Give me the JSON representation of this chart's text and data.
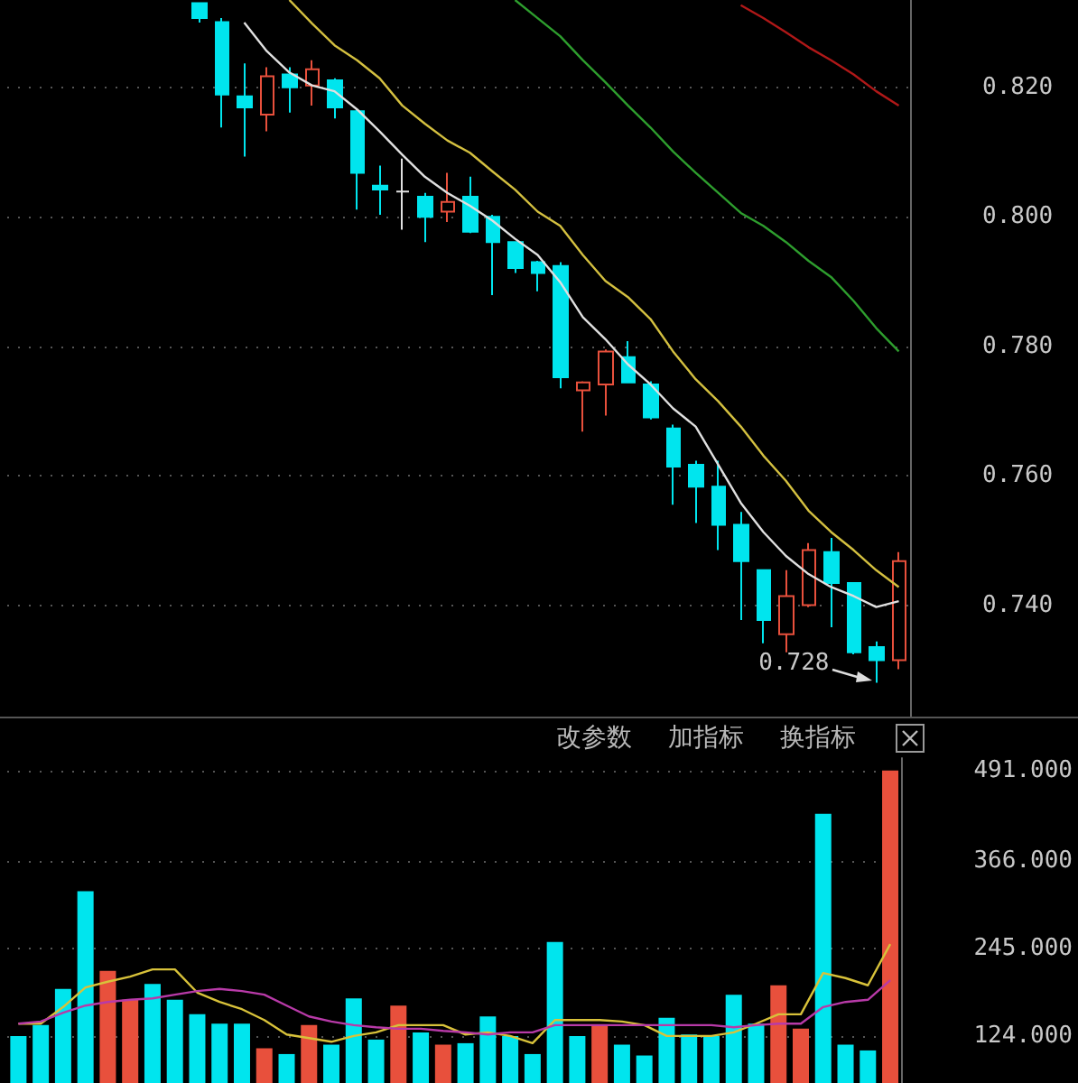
{
  "chart_data": [
    {
      "type": "candlestick",
      "categories": [
        null,
        null,
        null,
        null,
        null,
        null,
        null,
        null,
        null,
        null,
        null,
        null,
        null,
        null,
        null,
        null,
        null,
        null,
        null,
        null,
        null,
        null,
        null,
        null,
        null,
        null,
        null,
        null,
        null,
        null,
        null,
        null,
        null,
        null,
        null,
        null,
        null,
        null,
        null,
        null
      ],
      "ohlc": [
        null,
        null,
        null,
        null,
        null,
        null,
        null,
        null,
        [
          0.833,
          0.833,
          0.83,
          0.8307
        ],
        [
          0.8301,
          0.8307,
          0.8138,
          0.8189
        ],
        [
          0.8186,
          0.8237,
          0.8093,
          0.8169
        ],
        [
          0.8158,
          0.8231,
          0.8132,
          0.8217
        ],
        [
          0.822,
          0.8231,
          0.8161,
          0.82
        ],
        [
          0.8203,
          0.8242,
          0.8172,
          0.8228
        ],
        [
          0.8211,
          0.8214,
          0.8152,
          0.8169
        ],
        [
          0.8163,
          0.8166,
          0.8011,
          0.8068
        ],
        [
          0.8048,
          0.8079,
          0.8003,
          0.8042
        ],
        [
          0.8039,
          0.809,
          0.798,
          0.8039
        ],
        [
          0.8031,
          0.8037,
          0.7961,
          0.8
        ],
        [
          0.8008,
          0.8068,
          0.7992,
          0.8023
        ],
        [
          0.8031,
          0.8062,
          0.7975,
          0.7977
        ],
        [
          0.8,
          0.8003,
          0.7879,
          0.7961
        ],
        [
          0.7961,
          0.7961,
          0.7913,
          0.7921
        ],
        [
          0.793,
          0.7932,
          0.7885,
          0.7913
        ],
        [
          0.7924,
          0.793,
          0.7735,
          0.7752
        ],
        [
          0.7732,
          0.7746,
          0.7668,
          0.7744
        ],
        [
          0.7741,
          0.7795,
          0.7693,
          0.7792
        ],
        [
          0.7783,
          0.7808,
          0.7744,
          0.7744
        ],
        [
          0.7741,
          0.7746,
          0.7687,
          0.769
        ],
        [
          0.7673,
          0.7679,
          0.7555,
          0.7614
        ],
        [
          0.7617,
          0.7623,
          0.7527,
          0.7583
        ],
        [
          0.7583,
          0.7623,
          0.7485,
          0.7524
        ],
        [
          0.7524,
          0.7544,
          0.7377,
          0.7468
        ],
        [
          0.7454,
          0.7454,
          0.7341,
          0.7377
        ],
        [
          0.7355,
          0.7454,
          0.7327,
          0.7414
        ],
        [
          0.74,
          0.7496,
          0.7397,
          0.7485
        ],
        [
          0.7482,
          0.7504,
          0.7366,
          0.7434
        ],
        [
          0.7434,
          0.7434,
          0.7324,
          0.7327
        ],
        [
          0.7335,
          0.7344,
          0.728,
          0.7315
        ],
        [
          0.7315,
          0.7482,
          0.7301,
          0.7468
        ]
      ],
      "colors": [
        null,
        null,
        null,
        null,
        null,
        null,
        null,
        null,
        "#00e5ee",
        "#00e5ee",
        "#00e5ee",
        "#e8503c",
        "#00e5ee",
        "#e8503c",
        "#00e5ee",
        "#00e5ee",
        "#00e5ee",
        "#e0e0e0",
        "#00e5ee",
        "#e8503c",
        "#00e5ee",
        "#00e5ee",
        "#00e5ee",
        "#00e5ee",
        "#00e5ee",
        "#e8503c",
        "#e8503c",
        "#00e5ee",
        "#00e5ee",
        "#00e5ee",
        "#00e5ee",
        "#00e5ee",
        "#00e5ee",
        "#00e5ee",
        "#e8503c",
        "#e8503c",
        "#00e5ee",
        "#00e5ee",
        "#00e5ee",
        "#e8503c"
      ],
      "series": [
        {
          "type": "line",
          "color": "#e0e0e0",
          "values": [
            null,
            null,
            null,
            null,
            null,
            null,
            null,
            null,
            null,
            null,
            0.83,
            0.8256,
            0.8223,
            0.8203,
            0.8194,
            0.8166,
            0.8132,
            0.8096,
            0.8062,
            0.8037,
            0.8017,
            0.7994,
            0.7966,
            0.7941,
            0.7899,
            0.7845,
            0.7811,
            0.7772,
            0.7741,
            0.7704,
            0.7676,
            0.7617,
            0.7558,
            0.7513,
            0.7476,
            0.7448,
            0.7428,
            0.7414,
            0.7397,
            0.7406
          ]
        },
        {
          "type": "line",
          "color": "#d4c040",
          "values": [
            null,
            null,
            null,
            null,
            null,
            null,
            null,
            null,
            null,
            null,
            null,
            null,
            0.8335,
            0.8299,
            0.8265,
            0.8242,
            0.8214,
            0.8172,
            0.8144,
            0.8118,
            0.8099,
            0.807,
            0.8042,
            0.8008,
            0.7986,
            0.7941,
            0.7901,
            0.7876,
            0.7842,
            0.7792,
            0.7749,
            0.7715,
            0.7676,
            0.7631,
            0.7592,
            0.7546,
            0.7513,
            0.7485,
            0.7454,
            0.7428
          ]
        },
        {
          "type": "line",
          "color": "#2e9e2e",
          "values": [
            null,
            null,
            null,
            null,
            null,
            null,
            null,
            null,
            null,
            null,
            null,
            null,
            null,
            null,
            null,
            null,
            null,
            null,
            null,
            null,
            null,
            null,
            0.8335,
            0.8307,
            0.8279,
            0.8242,
            0.8208,
            0.8172,
            0.8138,
            0.8101,
            0.8068,
            0.8037,
            0.8006,
            0.7986,
            0.7961,
            0.7932,
            0.7907,
            0.787,
            0.7828,
            0.7792
          ]
        },
        {
          "type": "line",
          "color": "#b01818",
          "values": [
            null,
            null,
            null,
            null,
            null,
            null,
            null,
            null,
            null,
            null,
            null,
            null,
            null,
            null,
            null,
            null,
            null,
            null,
            null,
            null,
            null,
            null,
            null,
            null,
            null,
            null,
            null,
            null,
            null,
            null,
            null,
            null,
            0.8327,
            0.8307,
            0.8285,
            0.8262,
            0.8242,
            0.822,
            0.8194,
            0.8172
          ]
        }
      ],
      "ylim": [
        0.7225,
        0.8335
      ],
      "yticks": [
        {
          "value": 0.74,
          "label": "0.740"
        },
        {
          "value": 0.76,
          "label": "0.760"
        },
        {
          "value": 0.78,
          "label": "0.780"
        },
        {
          "value": 0.8,
          "label": "0.800"
        },
        {
          "value": 0.82,
          "label": "0.820"
        }
      ],
      "grid": "y",
      "tick_labels": "y",
      "marker": "none",
      "annotations": [
        "0.728"
      ]
    },
    {
      "type": "bar",
      "categories": [
        null,
        null,
        null,
        null,
        null,
        null,
        null,
        null,
        null,
        null,
        null,
        null,
        null,
        null,
        null,
        null,
        null,
        null,
        null,
        null,
        null,
        null,
        null,
        null,
        null,
        null,
        null,
        null,
        null,
        null,
        null,
        null,
        null,
        null,
        null,
        null,
        null,
        null,
        null,
        null
      ],
      "series": [
        {
          "type": "bar",
          "values": [
            124,
            139,
            189,
            324,
            214,
            174,
            196,
            174,
            154,
            141,
            141,
            107,
            99,
            139,
            112,
            176,
            119,
            166,
            129,
            112,
            114,
            151,
            124,
            99,
            254,
            124,
            139,
            112,
            97,
            149,
            126,
            124,
            181,
            141,
            194,
            134,
            431,
            112,
            104,
            491
          ],
          "colors": [
            "#00e5ee",
            "#00e5ee",
            "#00e5ee",
            "#00e5ee",
            "#e8503c",
            "#e8503c",
            "#00e5ee",
            "#00e5ee",
            "#00e5ee",
            "#00e5ee",
            "#00e5ee",
            "#e8503c",
            "#00e5ee",
            "#e8503c",
            "#00e5ee",
            "#00e5ee",
            "#00e5ee",
            "#e8503c",
            "#00e5ee",
            "#e8503c",
            "#00e5ee",
            "#00e5ee",
            "#00e5ee",
            "#00e5ee",
            "#00e5ee",
            "#00e5ee",
            "#e8503c",
            "#00e5ee",
            "#00e5ee",
            "#00e5ee",
            "#00e5ee",
            "#00e5ee",
            "#00e5ee",
            "#00e5ee",
            "#e8503c",
            "#e8503c",
            "#00e5ee",
            "#00e5ee",
            "#00e5ee",
            "#e8503c"
          ]
        },
        {
          "type": "line",
          "color": "#d8c23a",
          "values": [
            141,
            141,
            164,
            191,
            199,
            206,
            216,
            216,
            184,
            171,
            161,
            146,
            126,
            121,
            116,
            124,
            129,
            139,
            139,
            139,
            126,
            129,
            124,
            114,
            146,
            146,
            146,
            144,
            139,
            124,
            124,
            124,
            129,
            141,
            154,
            154,
            211,
            204,
            194,
            251
          ]
        },
        {
          "type": "line",
          "color": "#b83aa8",
          "values": [
            141,
            144,
            156,
            166,
            171,
            174,
            176,
            181,
            186,
            189,
            186,
            181,
            166,
            151,
            144,
            139,
            136,
            134,
            134,
            131,
            129,
            126,
            129,
            129,
            139,
            139,
            139,
            139,
            139,
            139,
            139,
            139,
            136,
            139,
            141,
            141,
            164,
            171,
            174,
            201
          ]
        }
      ],
      "ylim": [
        59,
        508
      ],
      "yticks": [
        {
          "value": 124,
          "label": "124.000"
        },
        {
          "value": 245,
          "label": "245.000"
        },
        {
          "value": 366,
          "label": "366.000"
        },
        {
          "value": 491,
          "label": "491.000"
        }
      ],
      "grid": "y",
      "tick_labels": "y",
      "marker": "none",
      "annotations": [
        "改参数",
        "加指标",
        "换指标"
      ]
    }
  ]
}
